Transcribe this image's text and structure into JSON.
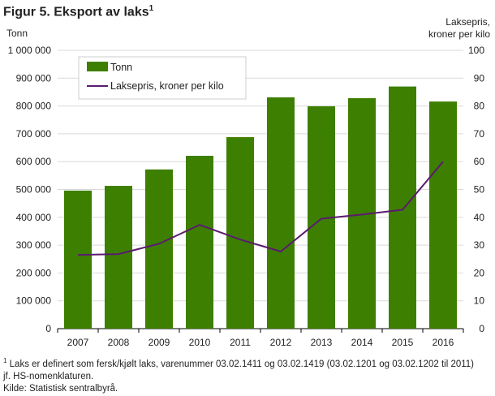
{
  "title": {
    "text": "Figur 5. Eksport av laks",
    "sup": "1"
  },
  "chart_data": {
    "type": "bar",
    "categories": [
      "2007",
      "2008",
      "2009",
      "2010",
      "2011",
      "2012",
      "2013",
      "2014",
      "2015",
      "2016"
    ],
    "series": [
      {
        "name": "Tonn",
        "type": "bar",
        "axis": "left",
        "color": "#3d7f00",
        "values": [
          496000,
          513000,
          572000,
          621000,
          688000,
          831000,
          799000,
          828000,
          870000,
          816000
        ]
      },
      {
        "name": "Laksepris, kroner per kilo",
        "type": "line",
        "axis": "right",
        "color": "#5a1b6e",
        "values": [
          26.5,
          26.8,
          30.5,
          37.3,
          32.0,
          27.7,
          39.5,
          41.0,
          42.7,
          60.0
        ]
      }
    ],
    "ylabel_left": "Tonn",
    "ylabel_right": [
      "Laksepris,",
      "kroner per kilo"
    ],
    "ylim_left": [
      0,
      1000000
    ],
    "ylim_right": [
      0,
      100
    ],
    "yticks_left": [
      "0",
      "100 000",
      "200 000",
      "300 000",
      "400 000",
      "500 000",
      "600 000",
      "700 000",
      "800 000",
      "900 000",
      "1 000 000"
    ],
    "yticks_right": [
      "0",
      "10",
      "20",
      "30",
      "40",
      "50",
      "60",
      "70",
      "80",
      "90",
      "100"
    ],
    "grid": true,
    "legend_position": "top-left"
  },
  "footnotes": {
    "sup": "1",
    "line1": " Laks er definert som fersk/kjølt laks, varenummer 03.02.1411 og 03.02.1419 (03.02.1201 og 03.02.1202 til 2011)",
    "line2": "jf. HS-nomenklaturen.",
    "source": "Kilde: Statistisk sentralbyrå."
  }
}
